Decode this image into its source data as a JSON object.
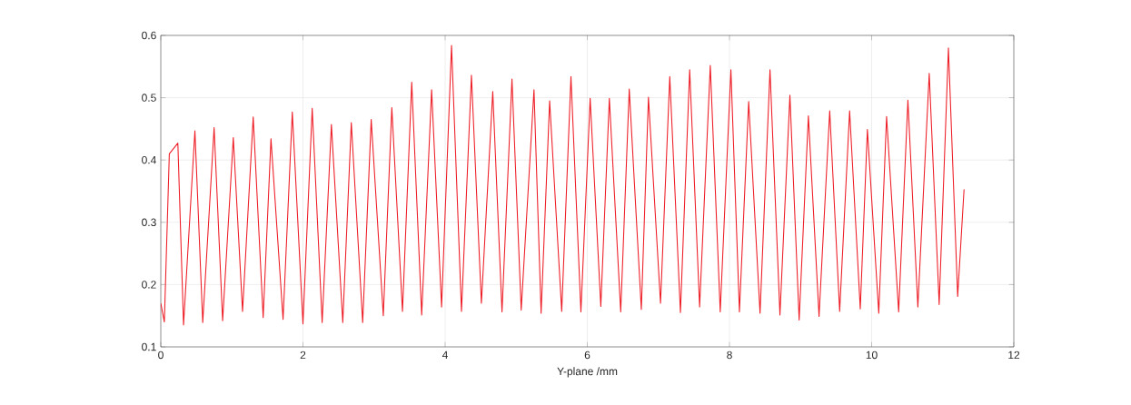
{
  "chart_data": {
    "type": "line",
    "xlabel": "Y-plane /mm",
    "x": [
      0,
      0.05,
      0.12,
      0.24,
      0.32,
      0.48,
      0.59,
      0.75,
      0.87,
      1.02,
      1.15,
      1.3,
      1.44,
      1.55,
      1.72,
      1.85,
      2.0,
      2.13,
      2.27,
      2.4,
      2.56,
      2.68,
      2.84,
      2.96,
      3.13,
      3.25,
      3.4,
      3.53,
      3.67,
      3.81,
      3.95,
      4.09,
      4.23,
      4.37,
      4.51,
      4.67,
      4.8,
      4.94,
      5.07,
      5.25,
      5.35,
      5.47,
      5.64,
      5.77,
      5.91,
      6.04,
      6.19,
      6.31,
      6.47,
      6.59,
      6.76,
      6.86,
      7.03,
      7.16,
      7.31,
      7.44,
      7.58,
      7.73,
      7.87,
      8.02,
      8.14,
      8.27,
      8.43,
      8.57,
      8.71,
      8.85,
      8.98,
      9.11,
      9.26,
      9.41,
      9.55,
      9.69,
      9.84,
      9.94,
      10.1,
      10.21,
      10.38,
      10.51,
      10.65,
      10.81,
      10.95,
      11.08,
      11.21,
      11.3
    ],
    "series": [
      {
        "color": "#ee1c25",
        "values": [
          0.17,
          0.14,
          0.41,
          0.427,
          0.135,
          0.447,
          0.139,
          0.452,
          0.142,
          0.436,
          0.157,
          0.469,
          0.147,
          0.434,
          0.144,
          0.477,
          0.137,
          0.483,
          0.139,
          0.457,
          0.139,
          0.46,
          0.139,
          0.465,
          0.15,
          0.484,
          0.157,
          0.525,
          0.151,
          0.513,
          0.164,
          0.584,
          0.157,
          0.536,
          0.17,
          0.51,
          0.156,
          0.53,
          0.159,
          0.513,
          0.154,
          0.495,
          0.157,
          0.534,
          0.156,
          0.499,
          0.165,
          0.499,
          0.156,
          0.514,
          0.16,
          0.501,
          0.17,
          0.534,
          0.155,
          0.545,
          0.164,
          0.552,
          0.156,
          0.545,
          0.156,
          0.494,
          0.154,
          0.545,
          0.151,
          0.504,
          0.143,
          0.471,
          0.149,
          0.479,
          0.157,
          0.479,
          0.161,
          0.449,
          0.154,
          0.47,
          0.156,
          0.496,
          0.164,
          0.539,
          0.168,
          0.58,
          0.181,
          0.353
        ]
      }
    ],
    "xlim": [
      0,
      12
    ],
    "ylim": [
      0.1,
      0.6
    ],
    "xticks": [
      0,
      2,
      4,
      6,
      8,
      10,
      12
    ],
    "yticks": [
      0.1,
      0.2,
      0.3,
      0.4,
      0.5,
      0.6
    ],
    "grid": true,
    "line_style": "solid"
  }
}
